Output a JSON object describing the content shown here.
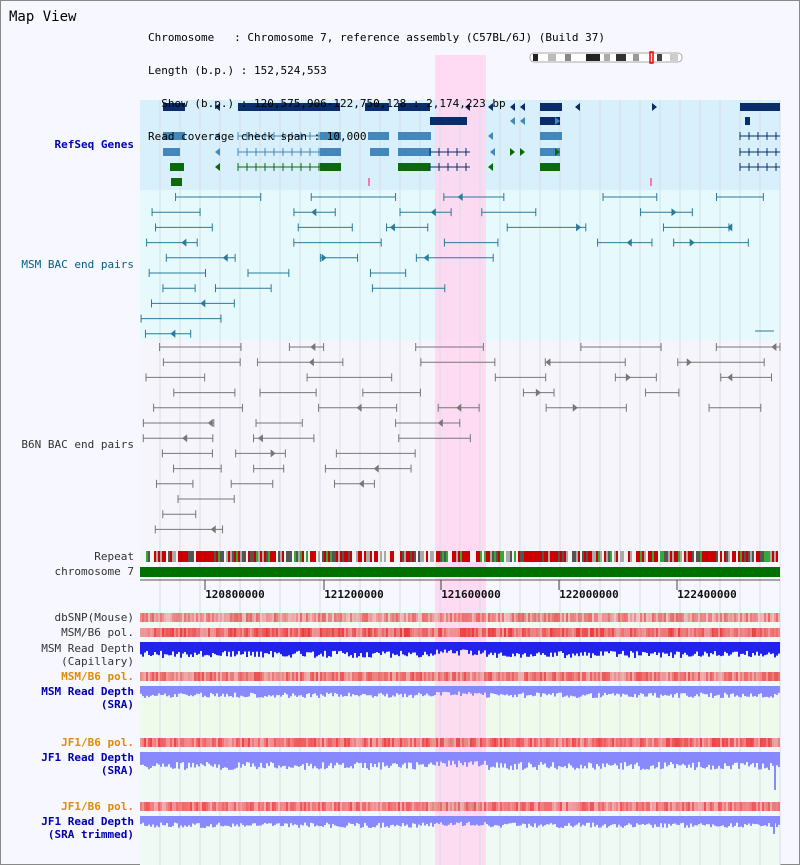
{
  "title": "Map View",
  "info": {
    "chromosome": "Chromosome   : Chromosome 7, reference assembly (C57BL/6J) (Build 37)",
    "length": "Length (b.p.) : 152,524,553",
    "show": "  Show (b.p.) : 120,575,906-122,750,128 : 2,174,223 bp",
    "coverage": "Read coverage check span : 10,000"
  },
  "tracks": {
    "refseq": "RefSeq Genes",
    "msm_bac": "MSM BAC end pairs",
    "b6n_bac": "B6N BAC end pairs",
    "repeat": "Repeat",
    "chromosome": "chromosome 7",
    "dbsnp": "dbSNP(Mouse)",
    "msm_pol": "MSM/B6 pol.",
    "msm_depth_cap_1": "MSM Read Depth",
    "msm_depth_cap_2": "(Capillary)",
    "msm_pol_sra": "MSM/B6 pol.",
    "msm_depth_sra_1": "MSM Read Depth",
    "msm_depth_sra_2": "(SRA)",
    "jf1_pol": "JF1/B6 pol.",
    "jf1_depth_1": "JF1 Read Depth",
    "jf1_depth_2": "(SRA)",
    "jf1_pol_trim": "JF1/B6 pol.",
    "jf1_trim_1": "JF1 Read Depth",
    "jf1_trim_2": "(SRA trimmed)"
  },
  "axis_ticks": [
    "120800000",
    "121200000",
    "121600000",
    "122000000",
    "122400000"
  ],
  "colors": {
    "refseq_bg": "#d8f0fb",
    "msm_bg": "#e6f9fd",
    "highlight": "#ffd6f0",
    "chrom": "#007000",
    "depth_cap": "#2222ee",
    "depth_sra": "#8888ff"
  }
}
